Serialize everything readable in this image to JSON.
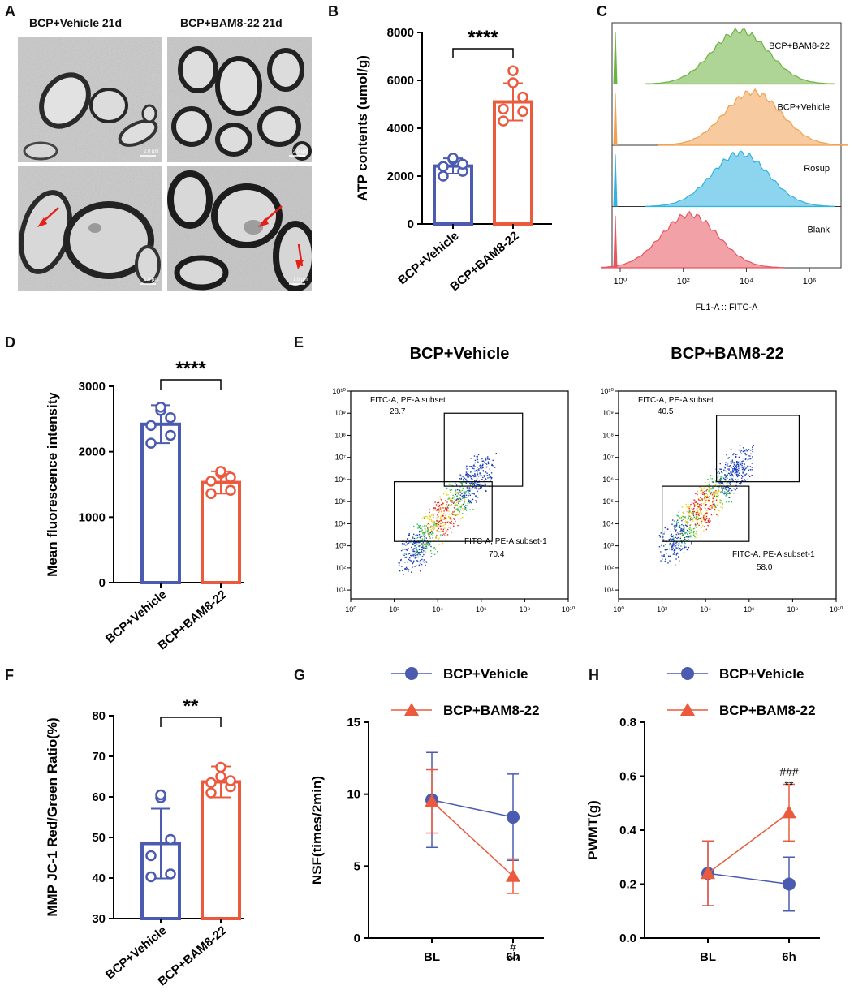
{
  "panels": {
    "A": "A",
    "B": "B",
    "C": "C",
    "D": "D",
    "E": "E",
    "F": "F",
    "G": "G",
    "H": "H"
  },
  "colors": {
    "vehicle": "#4a5bb0",
    "bam": "#ec5a3e",
    "green": "#6db33f",
    "orange": "#f0a050",
    "blue": "#2fb3e0",
    "red": "#e8555f"
  },
  "panelA": {
    "title_left": "BCP+Vehicle 21d",
    "title_right": "BCP+BAM8-22 21d",
    "scalebars": [
      "2.0 µm",
      "2.0 µm",
      "1.0 µm",
      "1.0 µm"
    ]
  },
  "chart_data": [
    {
      "id": "B",
      "type": "bar",
      "categories": [
        "BCP+Vehicle",
        "BCP+BAM8-22"
      ],
      "values": [
        2420,
        5100
      ],
      "errors": [
        320,
        780
      ],
      "points": [
        [
          2000,
          2200,
          2400,
          2500,
          2700,
          2750
        ],
        [
          4300,
          4700,
          4800,
          5300,
          5900,
          6400
        ]
      ],
      "ylabel": "ATP contents (umol/g)",
      "ylim": [
        0,
        8000
      ],
      "yticks": [
        "0",
        "2000",
        "4000",
        "6000",
        "8000"
      ],
      "significance": "****"
    },
    {
      "id": "C",
      "type": "area",
      "title": "",
      "xlabel": "FL1-A :: FITC-A",
      "xticks": [
        "10⁰",
        "10²",
        "10⁴",
        "10⁶"
      ],
      "series": [
        {
          "name": "BCP+BAM8-22",
          "peak_log10": 3.8
        },
        {
          "name": "BCP+Vehicle",
          "peak_log10": 4.2
        },
        {
          "name": "Rosup",
          "peak_log10": 3.8
        },
        {
          "name": "Blank",
          "peak_log10": 2.2
        }
      ]
    },
    {
      "id": "D",
      "type": "bar",
      "categories": [
        "BCP+Vehicle",
        "BCP+BAM8-22"
      ],
      "values": [
        2420,
        1530
      ],
      "errors": [
        290,
        170
      ],
      "points": [
        [
          2130,
          2250,
          2400,
          2520,
          2630,
          2680
        ],
        [
          1360,
          1410,
          1550,
          1610,
          1670,
          1700
        ]
      ],
      "ylabel": "Mean fluorescence intensity",
      "ylim": [
        0,
        3000
      ],
      "yticks": [
        "0",
        "1000",
        "2000",
        "3000"
      ],
      "significance": "****"
    },
    {
      "id": "E",
      "type": "scatter",
      "plots": [
        {
          "title": "BCP+Vehicle",
          "gate_upper_label": "FITC-A, PE-A subset",
          "gate_upper_value": "28.7",
          "gate_lower_label": "FITC-A, PE-A subset-1",
          "gate_lower_value": "70.4"
        },
        {
          "title": "BCP+BAM8-22",
          "gate_upper_label": "FITC-A, PE-A subset",
          "gate_upper_value": "40.5",
          "gate_lower_label": "FITC-A, PE-A subset-1",
          "gate_lower_value": "58.0"
        }
      ],
      "xticks": [
        "10⁰",
        "10²",
        "10⁴",
        "10⁶",
        "10⁸",
        "10¹⁰"
      ],
      "yticks": [
        "10¹",
        "10²",
        "10³",
        "10⁴",
        "10⁵",
        "10⁶",
        "10⁷",
        "10⁸",
        "10⁹",
        "10¹⁰"
      ]
    },
    {
      "id": "F",
      "type": "bar",
      "categories": [
        "BCP+Vehicle",
        "BCP+BAM8-22"
      ],
      "values": [
        48.5,
        63.7
      ],
      "errors": [
        8.6,
        3.8
      ],
      "points": [
        [
          40.3,
          41,
          45.5,
          49.5,
          59.8,
          60.5
        ],
        [
          61,
          62.5,
          63.5,
          64,
          65,
          67.3
        ]
      ],
      "ylabel": "MMP JC-1 Red/Green Ratio(%)",
      "ylim": [
        30,
        80
      ],
      "yticks": [
        "30",
        "40",
        "50",
        "60",
        "70",
        "80"
      ],
      "significance": "**"
    },
    {
      "id": "G",
      "type": "line",
      "categories": [
        "BL",
        "6h"
      ],
      "series": [
        {
          "name": "BCP+Vehicle",
          "values": [
            9.6,
            8.4
          ],
          "errors": [
            3.3,
            3.0
          ]
        },
        {
          "name": "BCP+BAM8-22",
          "values": [
            9.5,
            4.3
          ],
          "errors": [
            2.2,
            1.2
          ]
        }
      ],
      "ylabel": "NSF(times/2min)",
      "ylim": [
        0,
        15
      ],
      "yticks": [
        "0",
        "5",
        "10",
        "15"
      ],
      "annotations": [
        "#",
        "***"
      ]
    },
    {
      "id": "H",
      "type": "line",
      "categories": [
        "BL",
        "6h"
      ],
      "series": [
        {
          "name": "BCP+Vehicle",
          "values": [
            0.24,
            0.2
          ],
          "errors": [
            0.12,
            0.1
          ]
        },
        {
          "name": "BCP+BAM8-22",
          "values": [
            0.24,
            0.465
          ],
          "errors": [
            0.12,
            0.105
          ]
        }
      ],
      "ylabel": "PWMT(g)",
      "ylim": [
        0,
        0.8
      ],
      "yticks": [
        "0.0",
        "0.2",
        "0.4",
        "0.6",
        "0.8"
      ],
      "annotations": [
        "###",
        "**"
      ]
    }
  ]
}
